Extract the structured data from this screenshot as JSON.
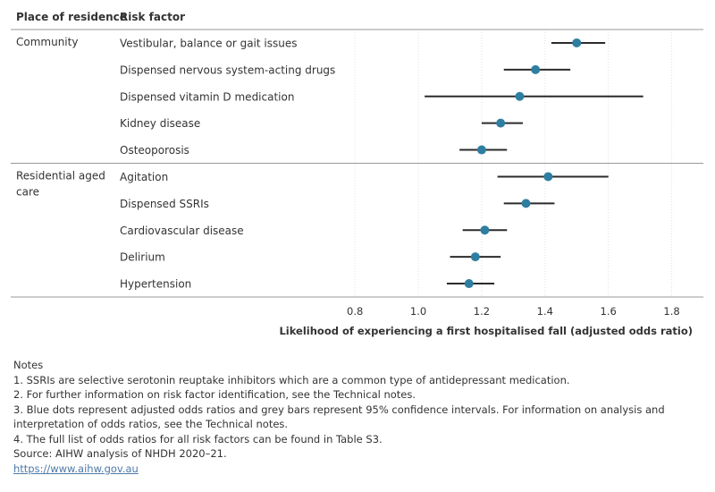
{
  "chart_data": {
    "type": "forest",
    "columns": {
      "group": "Place of residence",
      "factor": "Risk factor"
    },
    "xlabel": "Likelihood of experiencing a first hospitalised fall (adjusted odds ratio)",
    "xlim": [
      0.65,
      1.9
    ],
    "xticks": [
      "0.8",
      "1.0",
      "1.2",
      "1.4",
      "1.6",
      "1.8"
    ],
    "grid": "vertical",
    "colors": {
      "dot": "#2e7ea1",
      "bar": "#2b2b2b",
      "grid": "#e2e2e2",
      "divider": "#9a9a9a"
    },
    "groups": [
      {
        "name": "Community",
        "rows": [
          {
            "factor": "Vestibular, balance or gait issues",
            "or": 1.5,
            "low": 1.42,
            "high": 1.59
          },
          {
            "factor": "Dispensed nervous system-acting drugs",
            "or": 1.37,
            "low": 1.27,
            "high": 1.48
          },
          {
            "factor": "Dispensed vitamin D medication",
            "or": 1.32,
            "low": 1.02,
            "high": 1.71
          },
          {
            "factor": "Kidney disease",
            "or": 1.26,
            "low": 1.2,
            "high": 1.33
          },
          {
            "factor": "Osteoporosis",
            "or": 1.2,
            "low": 1.13,
            "high": 1.28
          }
        ]
      },
      {
        "name": "Residential aged care",
        "rows": [
          {
            "factor": "Agitation",
            "or": 1.41,
            "low": 1.25,
            "high": 1.6
          },
          {
            "factor": "Dispensed SSRIs",
            "or": 1.34,
            "low": 1.27,
            "high": 1.43
          },
          {
            "factor": "Cardiovascular disease",
            "or": 1.21,
            "low": 1.14,
            "high": 1.28
          },
          {
            "factor": "Delirium",
            "or": 1.18,
            "low": 1.1,
            "high": 1.26
          },
          {
            "factor": "Hypertension",
            "or": 1.16,
            "low": 1.09,
            "high": 1.24
          }
        ]
      }
    ]
  },
  "notes": {
    "heading": "Notes",
    "lines": [
      "1. SSRIs are selective serotonin reuptake inhibitors which are a common type of antidepressant medication.",
      "2. For further information on risk factor identification, see the Technical notes.",
      "3. Blue dots represent adjusted odds ratios and grey bars represent 95% confidence intervals. For information on analysis and",
      "interpretation of odds ratios, see the Technical notes.",
      "4. The full list of odds ratios for all risk factors can be found in Table S3.",
      "Source: AIHW analysis of NHDH 2020–21."
    ],
    "link": "https://www.aihw.gov.au"
  }
}
